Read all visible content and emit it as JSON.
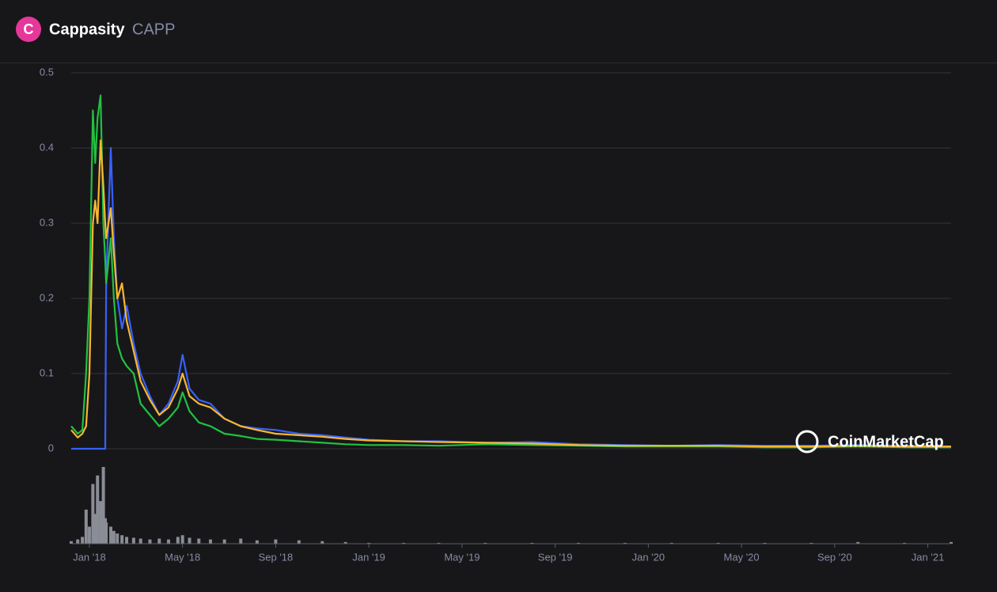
{
  "header": {
    "logo": "C",
    "name": "Cappasity",
    "symbol": "CAPP"
  },
  "watermark": "CoinMarketCap",
  "chart_data": {
    "type": "line",
    "x": [
      -0.78,
      -0.5,
      -0.3,
      -0.14,
      0.0,
      0.15,
      0.25,
      0.35,
      0.48,
      0.6,
      0.68,
      0.72,
      0.92,
      1.05,
      1.2,
      1.4,
      1.6,
      1.9,
      2.2,
      2.6,
      3.0,
      3.4,
      3.8,
      4.0,
      4.3,
      4.7,
      5.2,
      5.8,
      6.5,
      7.2,
      8.0,
      9.0,
      10.0,
      11.0,
      12.0,
      13.5,
      15,
      17,
      19,
      21,
      23,
      25,
      27,
      29,
      31,
      33,
      35,
      37
    ],
    "series": [
      {
        "color": "#3861fb",
        "values": [
          0,
          0,
          0,
          0,
          0,
          0,
          0,
          0,
          0,
          0,
          0,
          0.22,
          0.4,
          0.28,
          0.2,
          0.16,
          0.19,
          0.14,
          0.1,
          0.07,
          0.045,
          0.06,
          0.09,
          0.125,
          0.08,
          0.065,
          0.06,
          0.04,
          0.03,
          0.027,
          0.025,
          0.02,
          0.018,
          0.015,
          0.012,
          0.01,
          0.01,
          0.008,
          0.009,
          0.006,
          0.005,
          0.004,
          0.005,
          0.004,
          0.004,
          0.005,
          0.004,
          0.003
        ]
      },
      {
        "color": "#21c13f",
        "values": [
          0.03,
          0.02,
          0.025,
          0.1,
          0.2,
          0.45,
          0.38,
          0.44,
          0.47,
          0.3,
          0.25,
          0.22,
          0.28,
          0.2,
          0.14,
          0.12,
          0.11,
          0.1,
          0.06,
          0.045,
          0.03,
          0.04,
          0.055,
          0.075,
          0.05,
          0.035,
          0.03,
          0.02,
          0.017,
          0.013,
          0.012,
          0.01,
          0.008,
          0.006,
          0.005,
          0.005,
          0.004,
          0.006,
          0.005,
          0.004,
          0.003,
          0.003,
          0.003,
          0.002,
          0.002,
          0.003,
          0.002,
          0.002
        ]
      },
      {
        "color": "#f7b731",
        "values": [
          0.025,
          0.015,
          0.02,
          0.03,
          0.1,
          0.3,
          0.33,
          0.3,
          0.41,
          0.35,
          0.3,
          0.28,
          0.32,
          0.26,
          0.2,
          0.22,
          0.17,
          0.13,
          0.09,
          0.065,
          0.045,
          0.055,
          0.08,
          0.1,
          0.07,
          0.06,
          0.055,
          0.04,
          0.03,
          0.025,
          0.02,
          0.018,
          0.016,
          0.013,
          0.011,
          0.01,
          0.009,
          0.008,
          0.007,
          0.005,
          0.004,
          0.004,
          0.004,
          0.003,
          0.003,
          0.004,
          0.003,
          0.003
        ]
      }
    ],
    "volume": {
      "color": "#8a8d96",
      "values": [
        3,
        5,
        8,
        40,
        20,
        70,
        35,
        80,
        50,
        90,
        30,
        25,
        20,
        15,
        12,
        10,
        8,
        7,
        6,
        5,
        6,
        5,
        8,
        10,
        7,
        6,
        5,
        5,
        6,
        4,
        5,
        4,
        3,
        2,
        1,
        1,
        1,
        1,
        1,
        1,
        1,
        1,
        1,
        1,
        1,
        2,
        1,
        2
      ]
    },
    "xlim": [
      -0.78,
      37.0
    ],
    "xticks": [
      {
        "value": 0,
        "label": "Jan '18"
      },
      {
        "value": 4,
        "label": "May '18"
      },
      {
        "value": 8,
        "label": "Sep '18"
      },
      {
        "value": 12,
        "label": "Jan '19"
      },
      {
        "value": 16,
        "label": "May '19"
      },
      {
        "value": 20,
        "label": "Sep '19"
      },
      {
        "value": 24,
        "label": "Jan '20"
      },
      {
        "value": 28,
        "label": "May '20"
      },
      {
        "value": 32,
        "label": "Sep '20"
      },
      {
        "value": 36,
        "label": "Jan '21"
      }
    ],
    "ylim": [
      0,
      0.5
    ],
    "yticks": [
      0,
      0.1,
      0.2,
      0.3,
      0.4,
      0.5
    ],
    "grid": true
  }
}
